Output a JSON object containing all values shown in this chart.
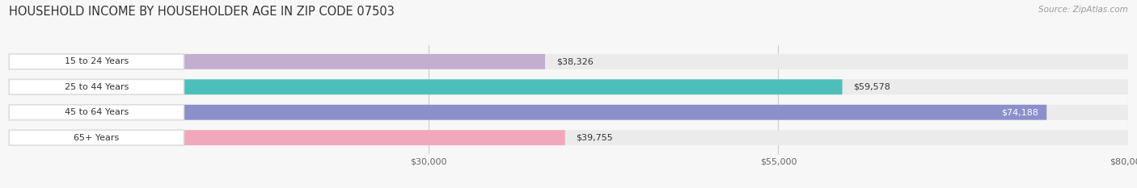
{
  "title": "HOUSEHOLD INCOME BY HOUSEHOLDER AGE IN ZIP CODE 07503",
  "source": "Source: ZipAtlas.com",
  "categories": [
    "15 to 24 Years",
    "25 to 44 Years",
    "45 to 64 Years",
    "65+ Years"
  ],
  "values": [
    38326,
    59578,
    74188,
    39755
  ],
  "bar_colors": [
    "#c4aed0",
    "#4dbfbb",
    "#8b8fcc",
    "#f2a8bc"
  ],
  "label_colors": [
    "#444444",
    "#444444",
    "#ffffff",
    "#444444"
  ],
  "xmin": 0,
  "xmax": 80000,
  "xticks": [
    30000,
    55000,
    80000
  ],
  "xtick_labels": [
    "$30,000",
    "$55,000",
    "$80,000"
  ],
  "background_color": "#f7f7f7",
  "bar_bg_color": "#ebebeb",
  "title_fontsize": 10.5,
  "source_fontsize": 7.5
}
